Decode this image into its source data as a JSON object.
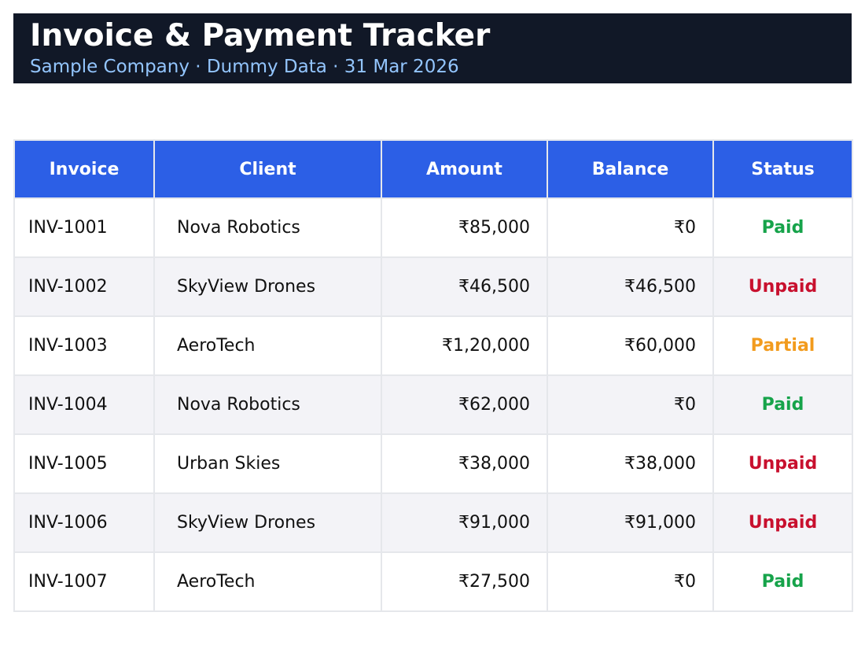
{
  "header": {
    "title": "Invoice & Payment Tracker",
    "subtitle": "Sample Company · Dummy Data · 31 Mar 2026"
  },
  "table": {
    "columns": [
      "Invoice",
      "Client",
      "Amount",
      "Balance",
      "Status"
    ],
    "rows": [
      {
        "invoice": "INV-1001",
        "client": "Nova Robotics",
        "amount": "₹85,000",
        "balance": "₹0",
        "status": "Paid"
      },
      {
        "invoice": "INV-1002",
        "client": "SkyView Drones",
        "amount": "₹46,500",
        "balance": "₹46,500",
        "status": "Unpaid"
      },
      {
        "invoice": "INV-1003",
        "client": "AeroTech",
        "amount": "₹1,20,000",
        "balance": "₹60,000",
        "status": "Partial"
      },
      {
        "invoice": "INV-1004",
        "client": "Nova Robotics",
        "amount": "₹62,000",
        "balance": "₹0",
        "status": "Paid"
      },
      {
        "invoice": "INV-1005",
        "client": "Urban Skies",
        "amount": "₹38,000",
        "balance": "₹38,000",
        "status": "Unpaid"
      },
      {
        "invoice": "INV-1006",
        "client": "SkyView Drones",
        "amount": "₹91,000",
        "balance": "₹91,000",
        "status": "Unpaid"
      },
      {
        "invoice": "INV-1007",
        "client": "AeroTech",
        "amount": "₹27,500",
        "balance": "₹0",
        "status": "Paid"
      }
    ]
  },
  "colors": {
    "header_bg": "#111827",
    "subtitle": "#93c5fd",
    "table_header_bg": "#2c5fe6",
    "status_paid": "#16a34a",
    "status_unpaid": "#c8102e",
    "status_partial": "#f29b1d"
  }
}
